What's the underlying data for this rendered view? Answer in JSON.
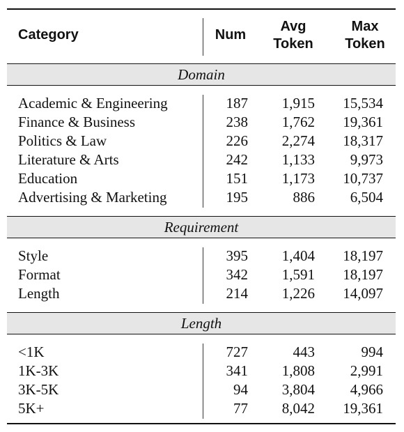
{
  "header": {
    "category": "Category",
    "num": "Num",
    "avg_line1": "Avg",
    "avg_line2": "Token",
    "max_line1": "Max",
    "max_line2": "Token"
  },
  "sections": [
    {
      "title": "Domain",
      "rows": [
        {
          "category": "Academic & Engineering",
          "num": "187",
          "avg": "1,915",
          "max": "15,534"
        },
        {
          "category": "Finance & Business",
          "num": "238",
          "avg": "1,762",
          "max": "19,361"
        },
        {
          "category": "Politics & Law",
          "num": "226",
          "avg": "2,274",
          "max": "18,317"
        },
        {
          "category": "Literature & Arts",
          "num": "242",
          "avg": "1,133",
          "max": "9,973"
        },
        {
          "category": "Education",
          "num": "151",
          "avg": "1,173",
          "max": "10,737"
        },
        {
          "category": "Advertising & Marketing",
          "num": "195",
          "avg": "886",
          "max": "6,504"
        }
      ]
    },
    {
      "title": "Requirement",
      "rows": [
        {
          "category": "Style",
          "num": "395",
          "avg": "1,404",
          "max": "18,197"
        },
        {
          "category": "Format",
          "num": "342",
          "avg": "1,591",
          "max": "18,197"
        },
        {
          "category": "Length",
          "num": "214",
          "avg": "1,226",
          "max": "14,097"
        }
      ]
    },
    {
      "title": "Length",
      "rows": [
        {
          "category": "<1K",
          "num": "727",
          "avg": "443",
          "max": "994"
        },
        {
          "category": "1K-3K",
          "num": "341",
          "avg": "1,808",
          "max": "2,991"
        },
        {
          "category": "3K-5K",
          "num": "94",
          "avg": "3,804",
          "max": "4,966"
        },
        {
          "category": "5K+",
          "num": "77",
          "avg": "8,042",
          "max": "19,361"
        }
      ]
    }
  ]
}
